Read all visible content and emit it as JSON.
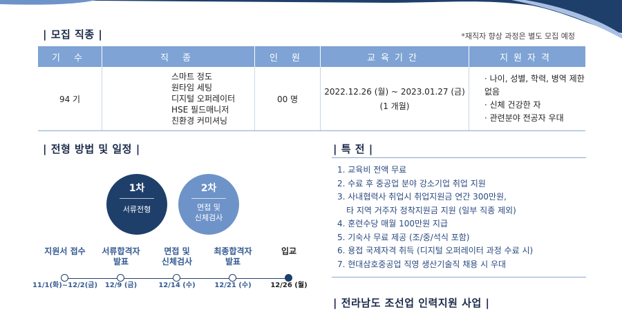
{
  "colors": {
    "navy": "#1f3f6b",
    "mid_blue": "#6e93c8",
    "header_blue": "#7ea3d4",
    "text_blue": "#2a4a80"
  },
  "recruit": {
    "title": "| 모집 직종 |",
    "note": "*재직자 향상 과정은 별도 모집 예정",
    "headers": [
      "기 수",
      "직 종",
      "인 원",
      "교육기간",
      "지원자격"
    ],
    "row": {
      "cohort": "94 기",
      "jobs": [
        "스마트 정도",
        "원타임 세팅",
        "디지털 오퍼레이터",
        "HSE 필드매니저",
        "친환경 커미셔닝"
      ],
      "count": "00 명",
      "period": "2022.12.26 (월) ~ 2023.01.27 (금)",
      "period_note": "(1 개월)",
      "quals": [
        "· 나이, 성별, 학력, 병역 제한없음",
        "· 신체 건강한 자",
        "· 관련분야 전공자 우대"
      ]
    }
  },
  "selection": {
    "title": "| 전형 방법 및 일정 |",
    "stages": [
      {
        "no": "1차",
        "label": "서류전형"
      },
      {
        "no": "2차",
        "label_line1": "면접 및",
        "label_line2": "신체검사"
      }
    ],
    "timeline": [
      {
        "label1": "",
        "label2": "지원서 접수",
        "date": "11/1(화)~12/2(금)"
      },
      {
        "label1": "서류합격자",
        "label2": "발표",
        "date": "12/9 (금)"
      },
      {
        "label1": "면접 및",
        "label2": "신체검사",
        "date": "12/14 (수)"
      },
      {
        "label1": "최종합격자",
        "label2": "발표",
        "date": "12/21 (수)"
      },
      {
        "label1": "",
        "label2": "입교",
        "date": "12/26 (월)"
      }
    ]
  },
  "benefits": {
    "title": "| 특 전 |",
    "items": [
      "1. 교육비 전액 무료",
      "2. 수료 후 중공업 분야 강소기업 취업 지원",
      "3. 사내협력사 취업시 취업지원금 연간 300만원,",
      "타 지역 거주자 정착지원금 지원 (일부 직종 제외)",
      "4. 훈련수당 매월 100만원 지급",
      "5. 기숙사 무료 제공 (조/중/석식 포함)",
      "6. 용접 국제자격 취득 (디지털 오퍼레이터 과정 수료 시)",
      "7. 현대삼호중공업 직영 생산기술직 채용 시 우대"
    ]
  },
  "bottom_title": "| 전라남도 조선업 인력지원 사업 |"
}
